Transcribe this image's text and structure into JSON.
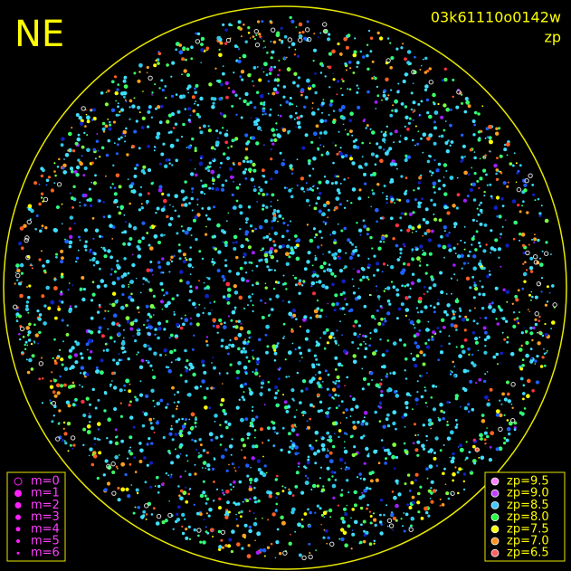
{
  "header": {
    "direction": "NE",
    "image_id": "03k61110o0142w",
    "mode": "zp"
  },
  "magnitude_legend": [
    "m=0",
    "m=1",
    "m=2",
    "m=3",
    "m=4",
    "m=5",
    "m=6"
  ],
  "zp_legend": [
    "zp=9.5",
    "zp=9.0",
    "zp=8.5",
    "zp=8.0",
    "zp=7.5",
    "zp=7.0",
    "zp=6.5"
  ]
}
